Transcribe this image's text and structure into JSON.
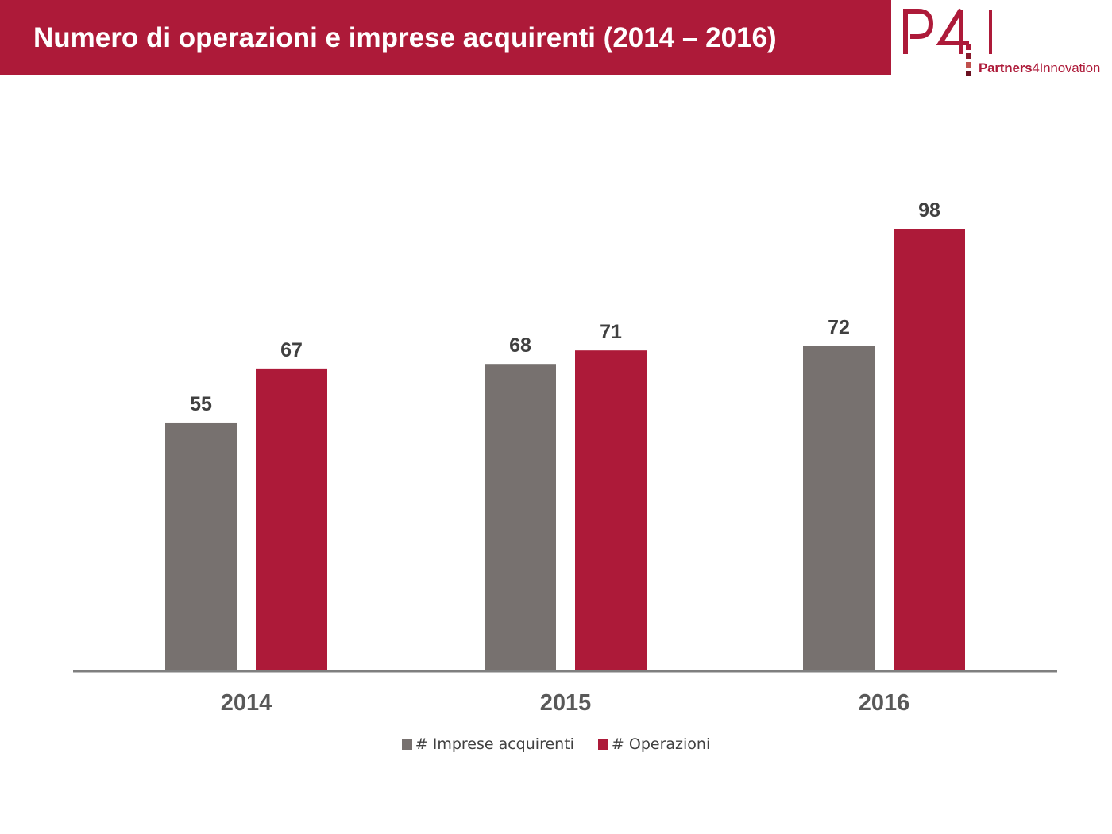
{
  "header": {
    "title": "Numero di operazioni e imprese acquirenti (2014 – 2016)"
  },
  "logo": {
    "mark": "P4I",
    "name_bold": "Partners",
    "name_digit": "4",
    "name_rest": "Innovation",
    "icon": "p4i-logo"
  },
  "colors": {
    "brand": "#ad1a39",
    "imprese": "#77716f",
    "operazioni": "#ad1a39",
    "axis": "#7f7f7f"
  },
  "chart_data": {
    "type": "bar",
    "title": "Numero di operazioni e imprese acquirenti (2014 – 2016)",
    "categories": [
      "2014",
      "2015",
      "2016"
    ],
    "series": [
      {
        "name": "# Imprese acquirenti",
        "values": [
          55,
          68,
          72
        ]
      },
      {
        "name": "# Operazioni",
        "values": [
          67,
          71,
          98
        ]
      }
    ],
    "ylim": [
      0,
      98
    ],
    "grid": false,
    "legend": "bottom",
    "xlabel": "",
    "ylabel": ""
  }
}
